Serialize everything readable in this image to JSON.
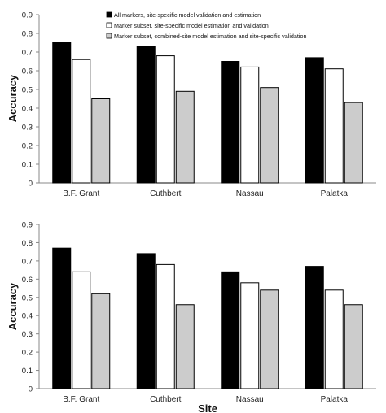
{
  "colors": {
    "series": [
      "#000000",
      "#ffffff",
      "#cccccc"
    ],
    "bar_stroke": "#000000",
    "axis": "#888888"
  },
  "chart_data": [
    {
      "type": "bar",
      "categories": [
        "B.F. Grant",
        "Cuthbert",
        "Nassau",
        "Palatka"
      ],
      "series": [
        {
          "name": "All markers, site-specific model validation and estimation",
          "values": [
            0.75,
            0.73,
            0.65,
            0.67
          ]
        },
        {
          "name": "Marker subset, site-specific model estimation and validation",
          "values": [
            0.66,
            0.68,
            0.62,
            0.61
          ]
        },
        {
          "name": "Marker subset, combined-site model estimation and site-specific validation",
          "values": [
            0.45,
            0.49,
            0.51,
            0.43
          ]
        }
      ],
      "ylabel": "Accuracy",
      "xlabel": "",
      "ylim": [
        0,
        0.9
      ],
      "yticks": [
        "0",
        "0.1",
        "0.2",
        "0.3",
        "0.4",
        "0.5",
        "0.6",
        "0.7",
        "0.8",
        "0.9"
      ],
      "legend": "top"
    },
    {
      "type": "bar",
      "categories": [
        "B.F. Grant",
        "Cuthbert",
        "Nassau",
        "Palatka"
      ],
      "series": [
        {
          "values": [
            0.77,
            0.74,
            0.64,
            0.67
          ]
        },
        {
          "values": [
            0.64,
            0.68,
            0.58,
            0.54
          ]
        },
        {
          "values": [
            0.52,
            0.46,
            0.54,
            0.46
          ]
        }
      ],
      "ylabel": "Accuracy",
      "xlabel": "Site",
      "ylim": [
        0,
        0.9
      ],
      "yticks": [
        "0",
        "0.1",
        "0.2",
        "0.3",
        "0.4",
        "0.5",
        "0.6",
        "0.7",
        "0.8",
        "0.9"
      ]
    }
  ]
}
